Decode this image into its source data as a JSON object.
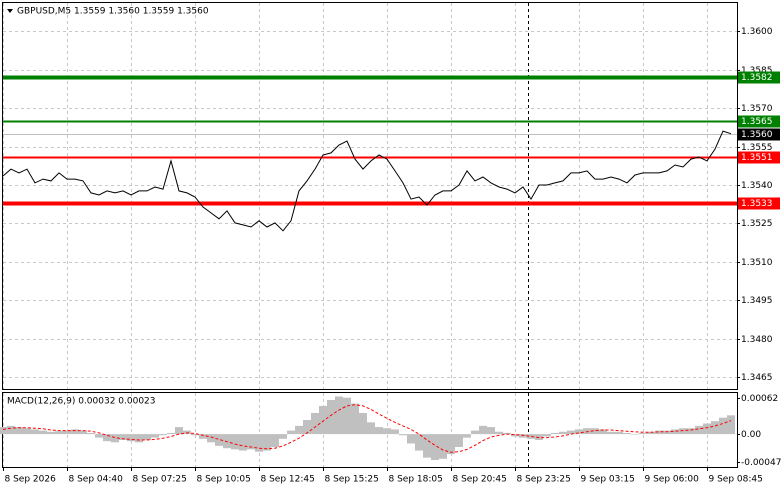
{
  "chart_data": [
    {
      "type": "line",
      "title": "GBPUSD,M5  1.3559 1.3560 1.3559 1.3560",
      "categories": [
        "8 Sep 2026",
        null,
        null,
        null,
        null,
        null,
        null,
        null,
        "8 Sep 04:40",
        null,
        null,
        null,
        null,
        null,
        null,
        null,
        "8 Sep 07:25",
        null,
        null,
        null,
        null,
        null,
        null,
        null,
        "8 Sep 10:05",
        null,
        null,
        null,
        null,
        null,
        null,
        null,
        "8 Sep 12:45",
        null,
        null,
        null,
        null,
        null,
        null,
        null,
        "8 Sep 15:25",
        null,
        null,
        null,
        null,
        null,
        null,
        null,
        "8 Sep 18:05",
        null,
        null,
        null,
        null,
        null,
        null,
        null,
        "8 Sep 20:45",
        null,
        null,
        null,
        null,
        null,
        null,
        null,
        "8 Sep 23:25",
        null,
        null,
        null,
        null,
        null,
        null,
        null,
        "9 Sep 03:15",
        null,
        null,
        null,
        null,
        null,
        null,
        null,
        "9 Sep 06:00",
        null,
        null,
        null,
        null,
        null,
        null,
        null,
        "9 Sep 08:45",
        null,
        null,
        null
      ],
      "values": [
        1.35435,
        1.35462,
        1.35447,
        1.35462,
        1.35408,
        1.35423,
        1.35416,
        1.35447,
        1.35423,
        1.35423,
        1.35416,
        1.35369,
        1.35361,
        1.35377,
        1.35369,
        1.35377,
        1.35361,
        1.35377,
        1.35377,
        1.35392,
        1.35384,
        1.35494,
        1.35377,
        1.35369,
        1.35353,
        1.35314,
        1.35291,
        1.35268,
        1.35299,
        1.35252,
        1.35244,
        1.35236,
        1.3526,
        1.35236,
        1.35252,
        1.35221,
        1.3526,
        1.35377,
        1.35416,
        1.35462,
        1.35517,
        1.35525,
        1.35556,
        1.35571,
        1.35501,
        1.35462,
        1.35494,
        1.35517,
        1.35501,
        1.35455,
        1.35408,
        1.35345,
        1.35353,
        1.35322,
        1.35361,
        1.35377,
        1.35377,
        1.354,
        1.35455,
        1.35416,
        1.35431,
        1.35408,
        1.35392,
        1.35384,
        1.35369,
        1.35392,
        1.35345,
        1.354,
        1.354,
        1.35408,
        1.35416,
        1.35447,
        1.35447,
        1.35455,
        1.35423,
        1.35423,
        1.35431,
        1.35423,
        1.35408,
        1.35439,
        1.35447,
        1.35447,
        1.35447,
        1.35455,
        1.35478,
        1.3547,
        1.35501,
        1.35509,
        1.35494,
        1.3554,
        1.3561,
        1.356
      ],
      "color": "#000000",
      "ylim": [
        1.346,
        1.3611
      ],
      "yticks": [
        {
          "value": 1.36,
          "label": "1.3600"
        },
        1.3585,
        {
          "value": 1.357,
          "label": "1.3570"
        },
        1.3555,
        {
          "value": 1.354,
          "label": "1.3540"
        },
        1.3525,
        {
          "value": 1.351,
          "label": "1.3510"
        },
        1.3495,
        {
          "value": 1.348,
          "label": "1.3480"
        },
        1.3465
      ],
      "grid": true,
      "levels": [
        {
          "value": 1.3582,
          "color": "#008000"
        },
        {
          "value": 1.3565,
          "color": "#008000"
        },
        {
          "value": 1.3551,
          "color": "#ff0000"
        },
        {
          "value": 1.3533,
          "color": "#ff0000"
        }
      ],
      "last_price": {
        "value": 1.356,
        "label": "1.3560"
      }
    },
    {
      "type": "bar",
      "title": "MACD(12,26,9) 0.00032 0.00023",
      "series": [
        {
          "type": "bar",
          "color": "#c0c0c0",
          "values": [
            0.00012,
            0.00014,
            0.00012,
            0.0001,
            8e-05,
            6e-05,
            4e-05,
            5e-05,
            6e-05,
            8e-05,
            6e-05,
            2e-05,
            -6e-05,
            -0.00012,
            -0.00014,
            -0.0001,
            -0.00012,
            -0.00014,
            -0.0001,
            -6e-05,
            -2e-05,
            2e-05,
            0.00012,
            6e-05,
            -2e-05,
            -8e-05,
            -0.00014,
            -0.0002,
            -0.00024,
            -0.00026,
            -0.00028,
            -0.00026,
            -0.0003,
            -0.00028,
            -0.00022,
            -8e-05,
            6e-05,
            0.00014,
            0.00024,
            0.00036,
            0.00048,
            0.00058,
            0.00064,
            0.00062,
            0.00052,
            0.00036,
            0.0002,
            0.00012,
            0.0001,
            8e-05,
            -2e-05,
            -0.00016,
            -0.00028,
            -0.0004,
            -0.00044,
            -0.00042,
            -0.00034,
            -0.00022,
            -6e-05,
            6e-05,
            0.00014,
            0.00012,
            4e-05,
            2e-05,
            -4e-05,
            -6e-05,
            -8e-05,
            -0.0001,
            -4e-05,
            2e-05,
            4e-05,
            6e-05,
            8e-05,
            0.0001,
            0.0001,
            8e-05,
            4e-05,
            4e-05,
            2e-05,
            0,
            2e-05,
            4e-05,
            6e-05,
            6e-05,
            8e-05,
            0.0001,
            0.0001,
            0.00014,
            0.00018,
            0.00022,
            0.00028,
            0.00032
          ]
        },
        {
          "type": "line",
          "color": "#ff0000",
          "values": [
            8e-05,
            0.0001,
            0.00011,
            0.00011,
            0.0001,
            9e-05,
            7e-05,
            6e-05,
            6e-05,
            6e-05,
            6e-05,
            5e-05,
            2e-05,
            -2e-05,
            -6e-05,
            -8e-05,
            -9e-05,
            -0.0001,
            -0.0001,
            -9e-05,
            -7e-05,
            -4e-05,
            0,
            2e-05,
            1e-05,
            -2e-05,
            -5e-05,
            -9e-05,
            -0.00013,
            -0.00017,
            -0.0002,
            -0.00022,
            -0.00024,
            -0.00025,
            -0.00024,
            -0.0002,
            -0.00014,
            -7e-05,
            2e-05,
            0.00012,
            0.00022,
            0.00032,
            0.00041,
            0.00048,
            0.0005,
            0.00048,
            0.00042,
            0.00034,
            0.00027,
            0.0002,
            0.00014,
            8e-05,
            0,
            -0.0001,
            -0.00019,
            -0.00027,
            -0.00031,
            -0.0003,
            -0.00026,
            -0.00019,
            -0.00011,
            -5e-05,
            -2e-05,
            0,
            -1e-05,
            -2e-05,
            -4e-05,
            -6e-05,
            -6e-05,
            -5e-05,
            -3e-05,
            0,
            2e-05,
            4e-05,
            6e-05,
            7e-05,
            7e-05,
            6e-05,
            5e-05,
            4e-05,
            3e-05,
            3e-05,
            4e-05,
            4e-05,
            5e-05,
            6e-05,
            7e-05,
            9e-05,
            0.00011,
            0.00014,
            0.00018,
            0.00023
          ]
        }
      ],
      "ylim": [
        -0.00056,
        0.0007
      ],
      "yticks": [
        {
          "value": 0.00062,
          "label": "0.00062"
        },
        {
          "value": 0,
          "label": "0.00"
        },
        {
          "value": -0.00047,
          "label": "-0.00047"
        }
      ],
      "grid": false
    }
  ]
}
